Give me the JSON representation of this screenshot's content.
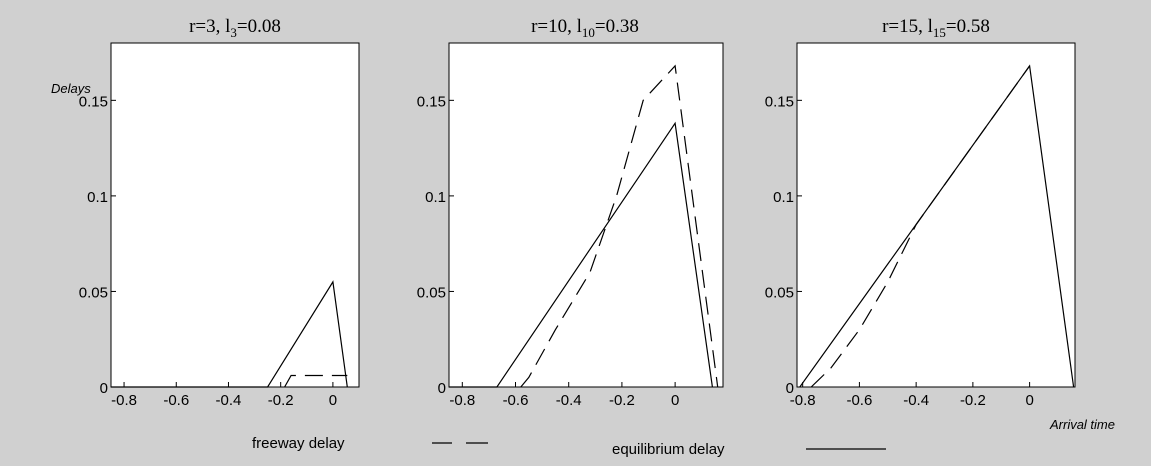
{
  "chart_data": [
    {
      "type": "line",
      "title": {
        "prefix": "r=3,  l",
        "subscript": "3",
        "suffix": "=0.08"
      },
      "ylabel": "Delays",
      "xlabel": "",
      "xlim": [
        -0.85,
        0.1
      ],
      "ylim": [
        0,
        0.18
      ],
      "xticks": [
        "-0.8",
        "-0.6",
        "-0.4",
        "-0.2",
        "0"
      ],
      "xtick_values": [
        -0.8,
        -0.6,
        -0.4,
        -0.2,
        0
      ],
      "yticks": [
        "0",
        "0.05",
        "0.1",
        "0.15"
      ],
      "ytick_values": [
        0,
        0.05,
        0.1,
        0.15
      ],
      "series": [
        {
          "style": "solid",
          "x": [
            -0.85,
            -0.25,
            0.0,
            0.055
          ],
          "y": [
            0,
            0,
            0.055,
            0
          ]
        },
        {
          "style": "dashed",
          "x": [
            -0.185,
            -0.16,
            0.055
          ],
          "y": [
            0,
            0.006,
            0.006
          ]
        }
      ]
    },
    {
      "type": "line",
      "title": {
        "prefix": "r=10,  l",
        "subscript": "10",
        "suffix": "=0.38"
      },
      "ylabel": "",
      "xlabel": "",
      "xlim": [
        -0.85,
        0.18
      ],
      "ylim": [
        0,
        0.18
      ],
      "xticks": [
        "-0.8",
        "-0.6",
        "-0.4",
        "-0.2",
        "0"
      ],
      "xtick_values": [
        -0.8,
        -0.6,
        -0.4,
        -0.2,
        0
      ],
      "yticks": [
        "0",
        "0.05",
        "0.1",
        "0.15"
      ],
      "ytick_values": [
        0,
        0.05,
        0.1,
        0.15
      ],
      "series": [
        {
          "style": "solid",
          "x": [
            -0.85,
            -0.67,
            0.0,
            0.14
          ],
          "y": [
            0,
            0,
            0.138,
            0
          ]
        },
        {
          "style": "dashed",
          "x": [
            -0.58,
            -0.55,
            -0.45,
            -0.32,
            -0.22,
            -0.12,
            0.0,
            0.16
          ],
          "y": [
            0,
            0.005,
            0.03,
            0.06,
            0.1,
            0.15,
            0.168,
            0
          ]
        }
      ]
    },
    {
      "type": "line",
      "title": {
        "prefix": "r=15,  l",
        "subscript": "15",
        "suffix": "=0.58"
      },
      "ylabel": "",
      "xlabel": "Arrival time",
      "xlim": [
        -0.82,
        0.16
      ],
      "ylim": [
        0,
        0.18
      ],
      "xticks": [
        "-0.8",
        "-0.6",
        "-0.4",
        "-0.2",
        "0"
      ],
      "xtick_values": [
        -0.8,
        -0.6,
        -0.4,
        -0.2,
        0
      ],
      "yticks": [
        "0",
        "0.05",
        "0.1",
        "0.15"
      ],
      "ytick_values": [
        0,
        0.05,
        0.1,
        0.15
      ],
      "series": [
        {
          "style": "solid",
          "x": [
            -0.81,
            0.0,
            0.155
          ],
          "y": [
            0,
            0.168,
            0
          ]
        },
        {
          "style": "dashed",
          "x": [
            -0.77,
            -0.7,
            -0.6,
            -0.5,
            -0.4,
            0.0
          ],
          "y": [
            0,
            0.01,
            0.03,
            0.055,
            0.085,
            0.168
          ]
        }
      ]
    }
  ],
  "legend": {
    "placement": "bottom",
    "items": [
      {
        "label": "freeway delay",
        "style": "dashed"
      },
      {
        "label": "equilibrium delay",
        "style": "solid"
      }
    ]
  },
  "colors": {
    "background": "#d0d0d0",
    "plot_background": "#ffffff",
    "ink": "#000000"
  }
}
